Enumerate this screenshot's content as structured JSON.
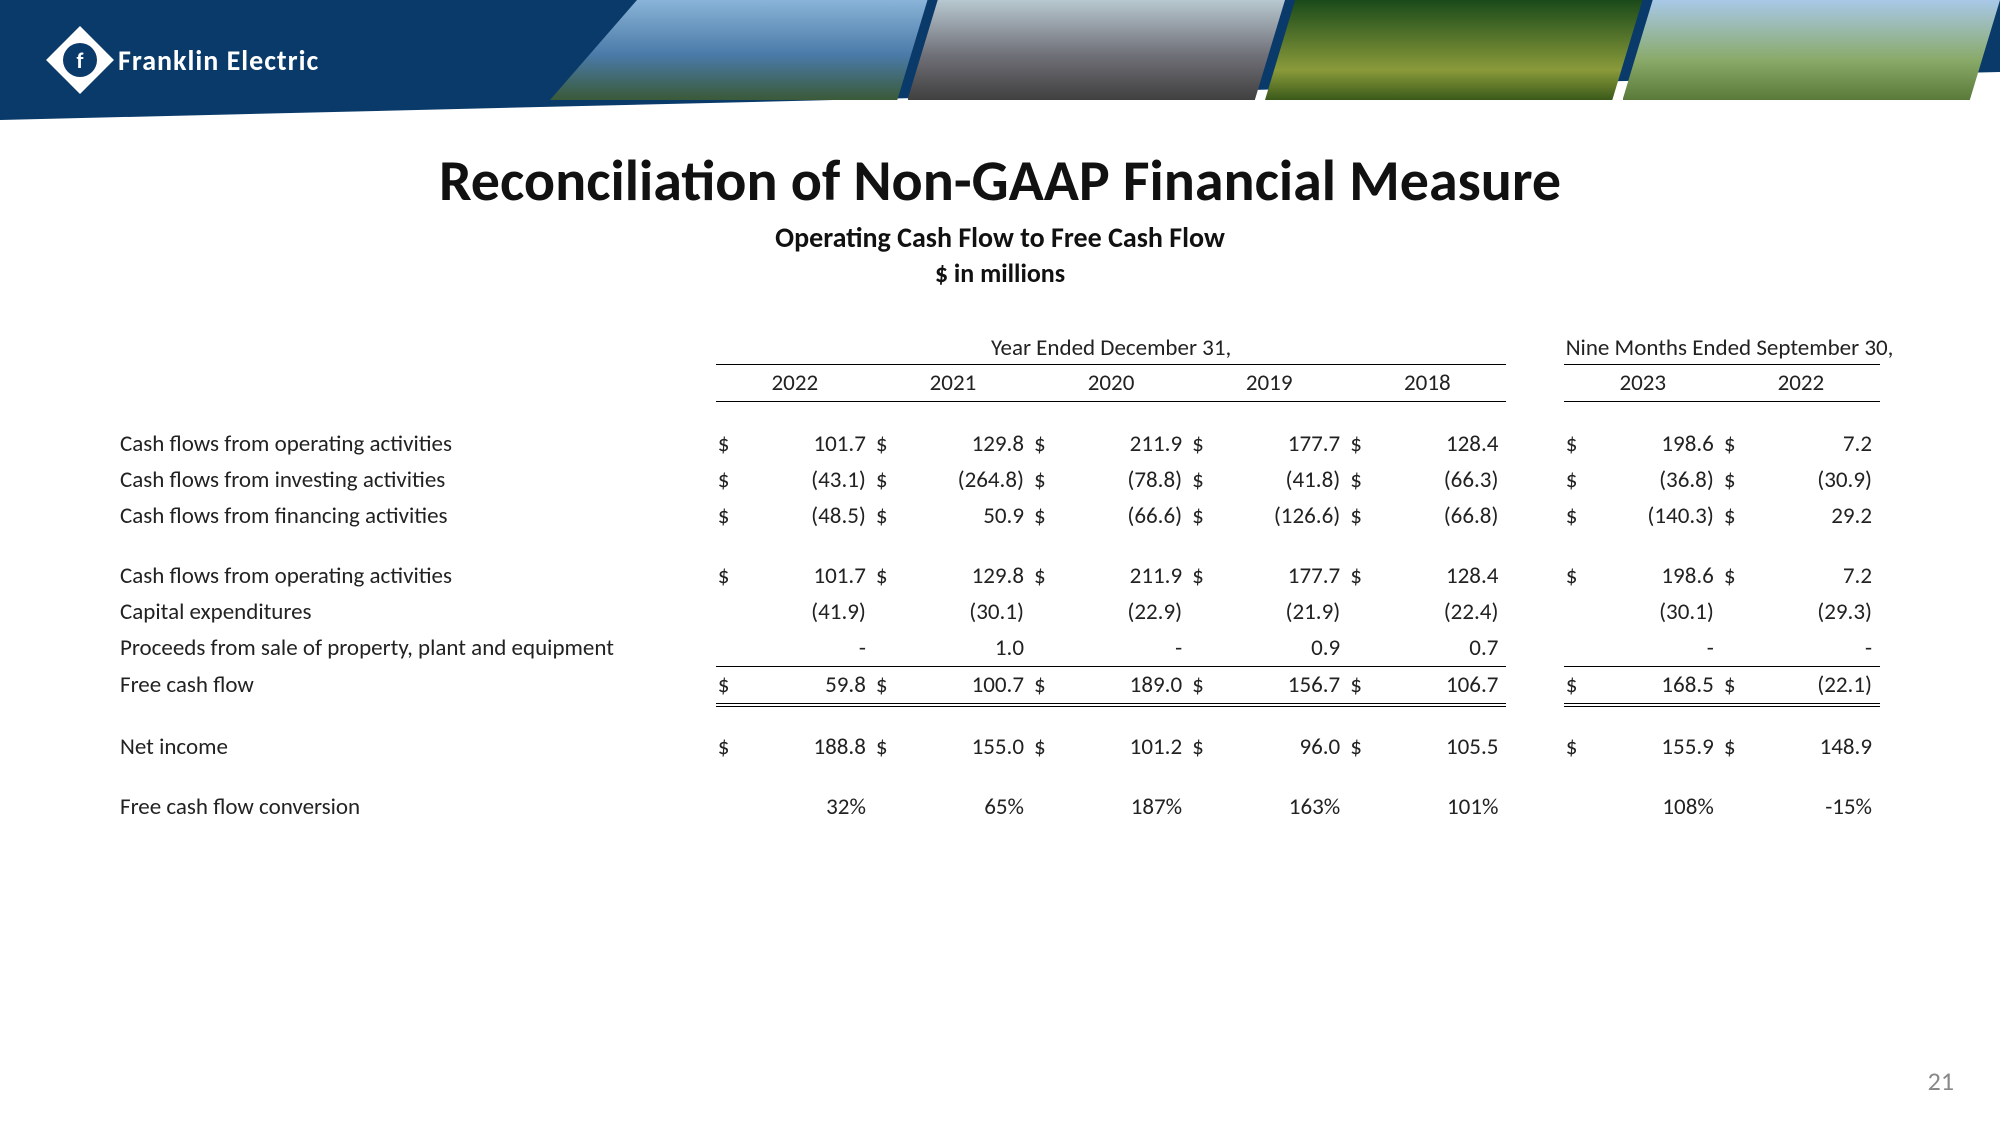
{
  "company_name": "Franklin Electric",
  "page_number": "21",
  "title": "Reconciliation of Non-GAAP Financial Measure",
  "subtitle1": "Operating Cash Flow to Free Cash Flow",
  "subtitle2": "$ in millions",
  "group_headers": {
    "annual": "Year Ended December 31,",
    "interim": "Nine Months Ended September 30,"
  },
  "years_annual": [
    "2022",
    "2021",
    "2020",
    "2019",
    "2018"
  ],
  "years_interim": [
    "2023",
    "2022"
  ],
  "rows": [
    {
      "label": "Cash flows from operating activities",
      "dollar": true,
      "annual": [
        "101.7",
        "129.8",
        "211.9",
        "177.7",
        "128.4"
      ],
      "interim": [
        "198.6",
        "7.2"
      ]
    },
    {
      "label": "Cash flows from investing activities",
      "dollar": true,
      "annual": [
        "(43.1)",
        "(264.8)",
        "(78.8)",
        "(41.8)",
        "(66.3)"
      ],
      "interim": [
        "(36.8)",
        "(30.9)"
      ]
    },
    {
      "label": "Cash flows from financing activities",
      "dollar": true,
      "annual": [
        "(48.5)",
        "50.9",
        "(66.6)",
        "(126.6)",
        "(66.8)"
      ],
      "interim": [
        "(140.3)",
        "29.2"
      ]
    }
  ],
  "rows2": [
    {
      "label": "Cash flows from operating activities",
      "dollar": true,
      "annual": [
        "101.7",
        "129.8",
        "211.9",
        "177.7",
        "128.4"
      ],
      "interim": [
        "198.6",
        "7.2"
      ]
    },
    {
      "label": "Capital expenditures",
      "dollar": false,
      "annual": [
        "(41.9)",
        "(30.1)",
        "(22.9)",
        "(21.9)",
        "(22.4)"
      ],
      "interim": [
        "(30.1)",
        "(29.3)"
      ]
    },
    {
      "label": "Proceeds from sale of property, plant and equipment",
      "dollar": false,
      "annual": [
        "-",
        "1.0",
        "-",
        "0.9",
        "0.7"
      ],
      "interim": [
        "-",
        "-"
      ]
    }
  ],
  "free_cash_flow": {
    "label": "Free cash flow",
    "dollar": true,
    "annual": [
      "59.8",
      "100.7",
      "189.0",
      "156.7",
      "106.7"
    ],
    "interim": [
      "168.5",
      "(22.1)"
    ]
  },
  "net_income": {
    "label": "Net income",
    "dollar": true,
    "annual": [
      "188.8",
      "155.0",
      "101.2",
      "96.0",
      "105.5"
    ],
    "interim": [
      "155.9",
      "148.9"
    ]
  },
  "conversion": {
    "label": "Free cash flow conversion",
    "annual": [
      "32%",
      "65%",
      "187%",
      "163%",
      "101%"
    ],
    "interim": [
      "108%",
      "-15%"
    ]
  },
  "colors": {
    "brand": "#0a3a6a",
    "text": "#222222",
    "page_num": "#888888"
  }
}
